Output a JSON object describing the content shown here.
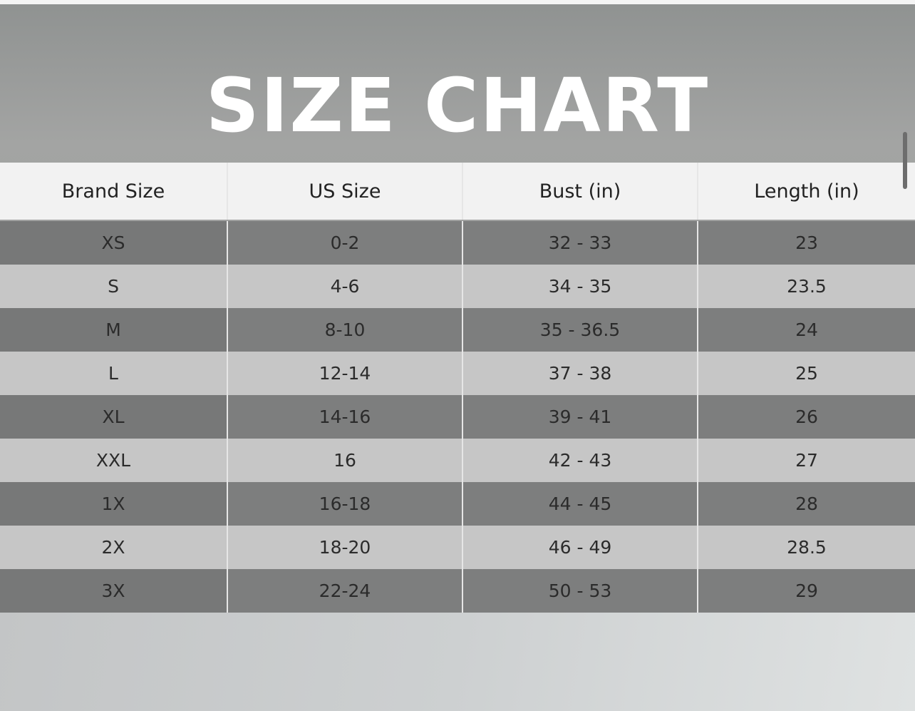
{
  "title": "SIZE CHART",
  "table": {
    "headers": [
      "Brand Size",
      "US Size",
      "Bust (in)",
      "Length (in)"
    ],
    "rows": [
      [
        "XS",
        "0-2",
        "32 - 33",
        "23"
      ],
      [
        "S",
        "4-6",
        "34 - 35",
        "23.5"
      ],
      [
        "M",
        "8-10",
        "35 - 36.5",
        "24"
      ],
      [
        "L",
        "12-14",
        "37 - 38",
        "25"
      ],
      [
        "XL",
        "14-16",
        "39 - 41",
        "26"
      ],
      [
        "XXL",
        "16",
        "42 - 43",
        "27"
      ],
      [
        "1X",
        "16-18",
        "44 - 45",
        "28"
      ],
      [
        "2X",
        "18-20",
        "46 - 49",
        "28.5"
      ],
      [
        "3X",
        "22-24",
        "50 - 53",
        "29"
      ]
    ]
  },
  "colors": {
    "header_bg": "#f2f2f2",
    "dark_row": "#7d7e7e",
    "light_row": "#c6c6c6",
    "title": "#ffffff"
  }
}
